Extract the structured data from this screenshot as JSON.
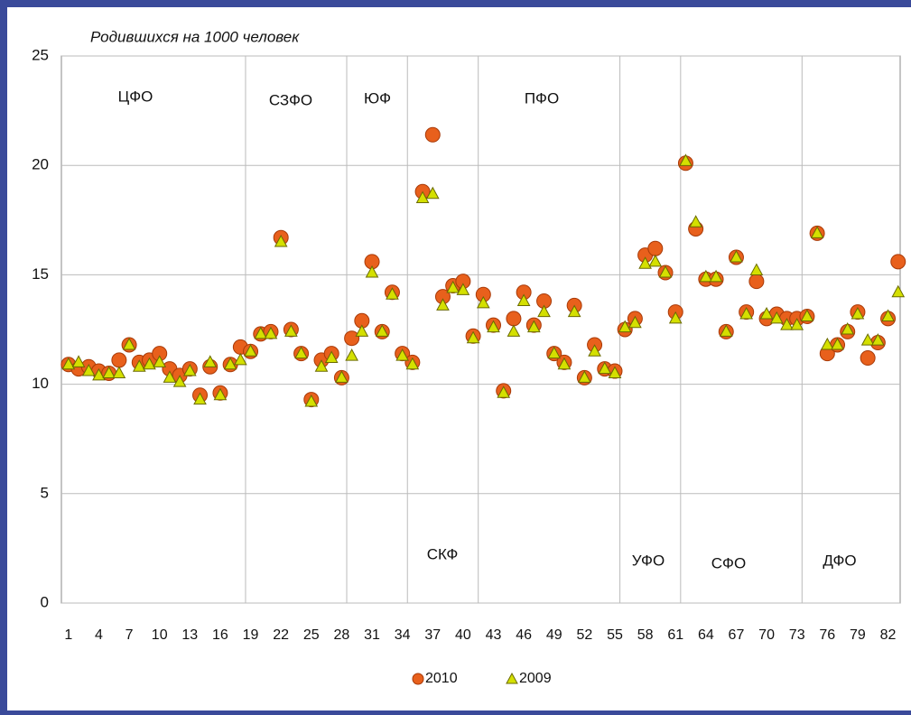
{
  "chart_data": {
    "type": "scatter",
    "title": "Родившихся на 1000 человек",
    "x": [
      1,
      2,
      3,
      4,
      5,
      6,
      7,
      8,
      9,
      10,
      11,
      12,
      13,
      14,
      15,
      16,
      17,
      18,
      19,
      20,
      21,
      22,
      23,
      24,
      25,
      26,
      27,
      28,
      29,
      30,
      31,
      32,
      33,
      34,
      35,
      36,
      37,
      38,
      39,
      40,
      41,
      42,
      43,
      44,
      45,
      46,
      47,
      48,
      49,
      50,
      51,
      52,
      53,
      54,
      55,
      56,
      57,
      58,
      59,
      60,
      61,
      62,
      63,
      64,
      65,
      66,
      67,
      68,
      69,
      70,
      71,
      72,
      73,
      74,
      75,
      76,
      77,
      78,
      79,
      80,
      81,
      82,
      83
    ],
    "series": [
      {
        "name": "2010",
        "color": "#e8601c",
        "marker": "circle",
        "values": [
          10.9,
          10.7,
          10.8,
          10.6,
          10.5,
          11.1,
          11.8,
          11.0,
          11.1,
          11.4,
          10.7,
          10.4,
          10.7,
          9.5,
          10.8,
          9.6,
          10.9,
          11.7,
          11.5,
          12.3,
          12.4,
          16.7,
          12.5,
          11.4,
          9.3,
          11.1,
          11.4,
          10.3,
          12.1,
          12.9,
          15.6,
          12.4,
          14.2,
          11.4,
          11.0,
          18.8,
          21.4,
          14.0,
          14.5,
          14.7,
          12.2,
          14.1,
          12.7,
          9.7,
          13.0,
          14.2,
          12.7,
          13.8,
          11.4,
          11.0,
          13.6,
          10.3,
          11.8,
          10.7,
          10.6,
          12.5,
          13.0,
          15.9,
          16.2,
          15.1,
          13.3,
          20.1,
          17.1,
          14.8,
          14.8,
          12.4,
          15.8,
          13.3,
          14.7,
          13.0,
          13.2,
          13.0,
          13.0,
          13.1,
          16.9,
          11.4,
          11.8,
          12.4,
          13.3,
          11.2,
          11.9,
          13.0,
          15.6
        ]
      },
      {
        "name": "2009",
        "color": "#d4e000",
        "marker": "triangle",
        "values": [
          10.9,
          11.0,
          10.6,
          10.4,
          10.5,
          10.5,
          11.8,
          10.8,
          10.9,
          11.0,
          10.3,
          10.1,
          10.6,
          9.3,
          11.0,
          9.5,
          10.9,
          11.1,
          11.5,
          12.3,
          12.3,
          16.5,
          12.4,
          11.4,
          9.2,
          10.8,
          11.2,
          10.3,
          11.3,
          12.4,
          15.1,
          12.4,
          14.1,
          11.3,
          10.9,
          18.5,
          18.7,
          13.6,
          14.4,
          14.3,
          12.1,
          13.7,
          12.6,
          9.6,
          12.4,
          13.8,
          12.6,
          13.3,
          11.4,
          10.9,
          13.3,
          10.3,
          11.5,
          10.7,
          10.5,
          12.6,
          12.8,
          15.5,
          15.6,
          15.1,
          13.0,
          20.2,
          17.4,
          14.9,
          14.9,
          12.4,
          15.8,
          13.2,
          15.2,
          13.2,
          13.0,
          12.7,
          12.7,
          13.1,
          16.9,
          11.8,
          11.8,
          12.5,
          13.2,
          12.0,
          12.0,
          13.1,
          14.2
        ]
      }
    ],
    "xlim": [
      0.3,
      83.2
    ],
    "xticks": [
      1,
      4,
      7,
      10,
      13,
      16,
      19,
      22,
      25,
      28,
      31,
      34,
      37,
      40,
      43,
      46,
      49,
      52,
      55,
      58,
      61,
      64,
      67,
      70,
      73,
      76,
      79,
      82
    ],
    "ylim": [
      0,
      25
    ],
    "yticks": [
      0,
      5,
      10,
      15,
      20,
      25
    ],
    "grid": true,
    "dividers": [
      18.5,
      28.5,
      34.5,
      41.5,
      55.5,
      61.5,
      73.5
    ],
    "annotations": [
      "ЦФО",
      "СЗФО",
      "ЮФ",
      "ПФО",
      "СКФ",
      "УФО",
      "СФО",
      "ДФО"
    ],
    "legend": "bottom"
  }
}
